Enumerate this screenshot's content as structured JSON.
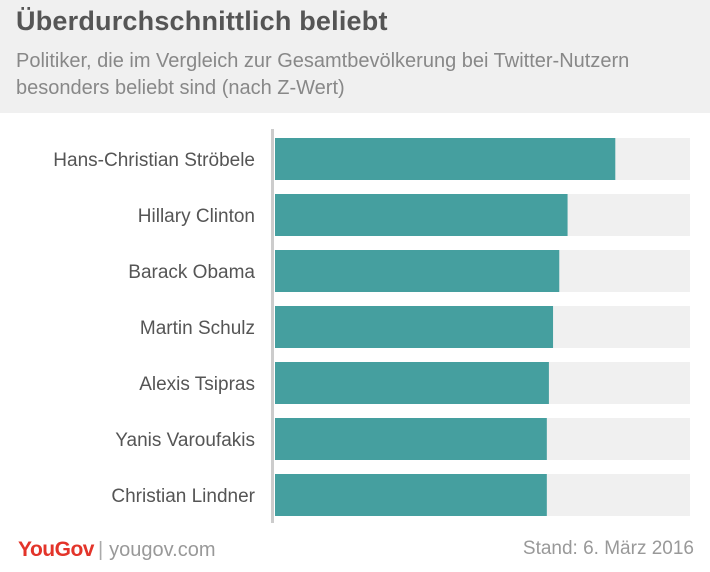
{
  "header": {
    "title": "Überdurchschnittlich beliebt",
    "subtitle": "Politiker, die im Vergleich zur Gesamtbevölkerung bei Twitter-Nutzern besonders beliebt sind (nach Z-Wert)"
  },
  "chart_data": {
    "type": "bar",
    "orientation": "horizontal",
    "categories": [
      "Hans-Christian Ströbele",
      "Hillary Clinton",
      "Barack Obama",
      "Martin Schulz",
      "Alexis Tsipras",
      "Yanis Varoufakis",
      "Christian Lindner"
    ],
    "values": [
      82,
      70.5,
      68.5,
      67,
      66,
      65.5,
      65.5
    ],
    "xlim": [
      0,
      100
    ],
    "grid": false,
    "legend": "none",
    "colors": {
      "bar": "#459f9f",
      "track": "#f0f0f0",
      "axis": "#cccccc",
      "label": "#555555"
    }
  },
  "footer": {
    "brand": "YouGov",
    "url": "yougov.com",
    "stand": "Stand: 6. März 2016"
  }
}
